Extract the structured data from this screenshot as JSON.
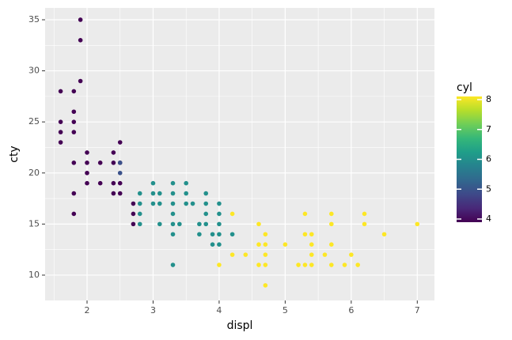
{
  "chart_data": {
    "type": "scatter",
    "xlabel": "displ",
    "ylabel": "cty",
    "xlim": [
      1.365,
      7.26
    ],
    "ylim": [
      7.52,
      36.16
    ],
    "xticks": [
      2,
      3,
      4,
      5,
      6,
      7
    ],
    "yticks": [
      10,
      15,
      20,
      25,
      30,
      35
    ],
    "grid": true,
    "x": [
      1.6,
      1.6,
      1.6,
      1.6,
      1.8,
      1.8,
      1.8,
      1.8,
      1.8,
      1.8,
      1.8,
      1.9,
      1.9,
      1.9,
      2.0,
      2.0,
      2.0,
      2.0,
      2.2,
      2.2,
      2.4,
      2.4,
      2.4,
      2.4,
      2.5,
      2.5,
      2.5,
      2.5,
      2.7,
      2.7,
      2.7,
      2.5,
      2.5,
      2.8,
      2.8,
      2.8,
      2.8,
      3.0,
      3.0,
      3.0,
      3.1,
      3.1,
      3.1,
      3.3,
      3.3,
      3.3,
      3.3,
      3.3,
      3.3,
      3.3,
      3.4,
      3.5,
      3.5,
      3.5,
      3.6,
      3.7,
      3.7,
      3.8,
      3.8,
      3.8,
      3.8,
      3.9,
      3.9,
      4.0,
      4.0,
      4.0,
      4.0,
      4.0,
      4.2,
      4.0,
      4.2,
      4.2,
      4.4,
      4.6,
      4.6,
      4.6,
      4.7,
      4.7,
      4.7,
      4.7,
      4.7,
      5.0,
      5.2,
      5.3,
      5.3,
      5.3,
      5.4,
      5.4,
      5.4,
      5.4,
      5.6,
      5.7,
      5.7,
      5.7,
      5.7,
      5.9,
      6.0,
      6.1,
      6.2,
      6.2,
      6.5,
      7.0
    ],
    "y": [
      28,
      25,
      24,
      23,
      28,
      26,
      25,
      24,
      21,
      18,
      16,
      35,
      33,
      29,
      22,
      21,
      20,
      19,
      21,
      19,
      22,
      21,
      19,
      18,
      23,
      21,
      19,
      18,
      17,
      16,
      15,
      21,
      20,
      18,
      17,
      16,
      15,
      19,
      18,
      17,
      18,
      17,
      15,
      19,
      18,
      17,
      16,
      15,
      14,
      11,
      15,
      19,
      18,
      17,
      17,
      15,
      14,
      18,
      16,
      15,
      17,
      14,
      13,
      17,
      16,
      15,
      14,
      13,
      14,
      11,
      16,
      12,
      12,
      15,
      13,
      11,
      14,
      13,
      12,
      11,
      9,
      13,
      11,
      16,
      14,
      11,
      14,
      13,
      12,
      11,
      12,
      16,
      15,
      13,
      11,
      11,
      12,
      11,
      16,
      15,
      14,
      15
    ],
    "cyl": [
      4,
      4,
      4,
      4,
      4,
      4,
      4,
      4,
      4,
      4,
      4,
      4,
      4,
      4,
      4,
      4,
      4,
      4,
      4,
      4,
      4,
      4,
      4,
      4,
      4,
      4,
      4,
      4,
      4,
      4,
      4,
      5,
      5,
      6,
      6,
      6,
      6,
      6,
      6,
      6,
      6,
      6,
      6,
      6,
      6,
      6,
      6,
      6,
      6,
      6,
      6,
      6,
      6,
      6,
      6,
      6,
      6,
      6,
      6,
      6,
      6,
      6,
      6,
      6,
      6,
      6,
      6,
      6,
      6,
      8,
      8,
      8,
      8,
      8,
      8,
      8,
      8,
      8,
      8,
      8,
      8,
      8,
      8,
      8,
      8,
      8,
      8,
      8,
      8,
      8,
      8,
      8,
      8,
      8,
      8,
      8,
      8,
      8,
      8,
      8,
      8,
      8
    ],
    "colorbar": {
      "title": "cyl",
      "lim": [
        4,
        8
      ],
      "ticks": [
        4,
        5,
        6,
        7,
        8
      ],
      "colors": [
        "#440154",
        "#482878",
        "#3e4989",
        "#31688e",
        "#26828e",
        "#1f9e89",
        "#35b779",
        "#6ece58",
        "#b5de2b",
        "#fde725"
      ]
    }
  }
}
